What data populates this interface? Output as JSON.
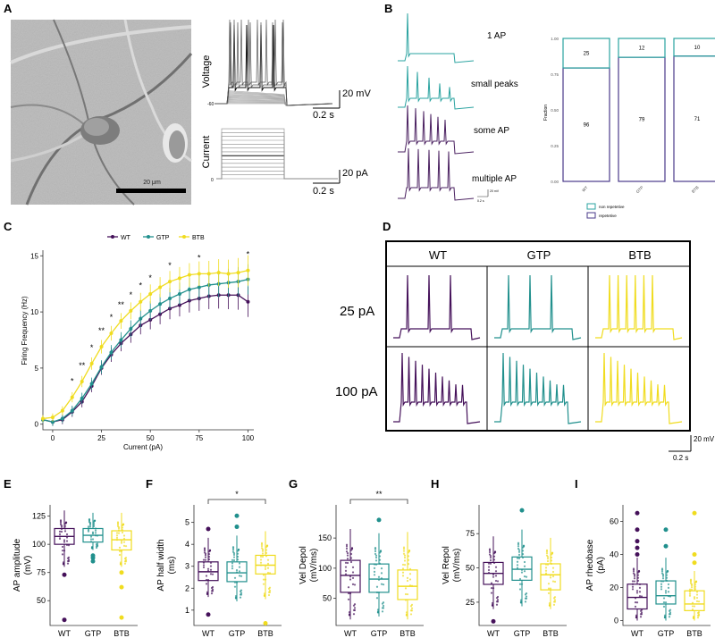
{
  "panel_letters": [
    "A",
    "B",
    "C",
    "D",
    "E",
    "F",
    "G",
    "H",
    "I"
  ],
  "colors": {
    "WT": "#45115a",
    "GTP": "#21908d",
    "BTB": "#f0dc1f",
    "bar_nonrep": "#2aa3a0",
    "bar_rep": "#4a3a8a"
  },
  "panelA": {
    "scale_text": "20 μm",
    "voltage_label": "Voltage",
    "current_label": "Current",
    "volt_scale_v": "20 mV",
    "volt_scale_t": "0.2 s",
    "curr_scale_v": "20 pA",
    "curr_scale_t": "0.2 s",
    "volt_baseline": "-60",
    "curr_baseline": "0"
  },
  "panelB": {
    "trace_labels": [
      "1 AP",
      "small peaks",
      "some AP",
      "multiple AP"
    ],
    "mini_scale_v": "20 mV",
    "mini_scale_t": "0.2 s",
    "bar_chart": {
      "type": "bar",
      "ylabel": "Fraction",
      "yticks": [
        "0.00",
        "0.25",
        "0.50",
        "0.75",
        "1.00"
      ],
      "categories": [
        "WT",
        "GTP",
        "BTB"
      ],
      "series": [
        {
          "name": "repetitive",
          "values": [
            96,
            79,
            71
          ]
        },
        {
          "name": "non repetetive",
          "values": [
            25,
            12,
            10
          ]
        }
      ],
      "legend": [
        "non repetetive",
        "repetetive"
      ]
    }
  },
  "chart_data": [
    {
      "type": "line",
      "title": "",
      "xlabel": "Current (pA)",
      "ylabel": "Firing Frequency (Hz)",
      "xlim": [
        -5,
        103
      ],
      "ylim": [
        -0.5,
        15.5
      ],
      "xticks": [
        "0",
        "25",
        "50",
        "75",
        "100"
      ],
      "yticks": [
        "0",
        "5",
        "10",
        "15"
      ],
      "x": [
        -5,
        0,
        5,
        10,
        15,
        20,
        25,
        30,
        35,
        40,
        45,
        50,
        55,
        60,
        65,
        70,
        75,
        80,
        85,
        90,
        95,
        100
      ],
      "series": [
        {
          "name": "WT",
          "values": [
            0.4,
            0.2,
            0.4,
            1.1,
            2.0,
            3.4,
            5.0,
            6.2,
            7.2,
            8.0,
            8.8,
            9.3,
            9.8,
            10.3,
            10.6,
            11.0,
            11.2,
            11.4,
            11.5,
            11.5,
            11.5,
            10.9
          ]
        },
        {
          "name": "GTP",
          "values": [
            0.4,
            0.2,
            0.5,
            1.2,
            2.3,
            3.6,
            5.1,
            6.4,
            7.5,
            8.5,
            9.4,
            10.1,
            10.7,
            11.2,
            11.6,
            12.0,
            12.2,
            12.4,
            12.5,
            12.6,
            12.7,
            12.9
          ]
        },
        {
          "name": "BTB",
          "values": [
            0.5,
            0.6,
            1.2,
            2.4,
            3.8,
            5.4,
            6.9,
            8.1,
            9.2,
            10.1,
            10.9,
            11.6,
            12.2,
            12.7,
            13.0,
            13.3,
            13.4,
            13.4,
            13.5,
            13.4,
            13.5,
            13.7
          ]
        }
      ],
      "sig_marks": [
        {
          "x": 10,
          "label": "*"
        },
        {
          "x": 15,
          "label": "**"
        },
        {
          "x": 20,
          "label": "*"
        },
        {
          "x": 25,
          "label": "**"
        },
        {
          "x": 30,
          "label": "*"
        },
        {
          "x": 35,
          "label": "**"
        },
        {
          "x": 40,
          "label": "*"
        },
        {
          "x": 45,
          "label": "*"
        },
        {
          "x": 50,
          "label": "*"
        },
        {
          "x": 60,
          "label": "*"
        },
        {
          "x": 75,
          "label": "*"
        },
        {
          "x": 100,
          "label": "*"
        }
      ],
      "legend": [
        "WT",
        "GTP",
        "BTB"
      ]
    },
    {
      "type": "box",
      "panel": "E",
      "ylabel": "AP amplitude\n(mV)",
      "ylim": [
        28,
        135
      ],
      "yticks": [
        50,
        75,
        100,
        125
      ],
      "categories": [
        "WT",
        "GTP",
        "BTB"
      ],
      "boxes": [
        {
          "min": 80,
          "q1": 100,
          "median": 107,
          "q3": 114,
          "max": 130,
          "outliers": [
            73,
            33
          ]
        },
        {
          "min": 95,
          "q1": 102,
          "median": 108,
          "q3": 114,
          "max": 128,
          "outliers": [
            88,
            85,
            90
          ]
        },
        {
          "min": 80,
          "q1": 95,
          "median": 104,
          "q3": 112,
          "max": 128,
          "outliers": [
            75,
            62,
            35
          ]
        }
      ],
      "sig": null
    },
    {
      "type": "box",
      "panel": "F",
      "ylabel": "AP half width\n(ms)",
      "ylim": [
        0.3,
        5.8
      ],
      "yticks": [
        1,
        2,
        3,
        4,
        5
      ],
      "categories": [
        "WT",
        "GTP",
        "BTB"
      ],
      "boxes": [
        {
          "min": 1.6,
          "q1": 2.35,
          "median": 2.75,
          "q3": 3.2,
          "max": 4.3,
          "outliers": [
            0.8,
            4.7
          ]
        },
        {
          "min": 1.4,
          "q1": 2.3,
          "median": 2.7,
          "q3": 3.2,
          "max": 4.4,
          "outliers": [
            5.3,
            4.8
          ]
        },
        {
          "min": 1.5,
          "q1": 2.65,
          "median": 3.05,
          "q3": 3.5,
          "max": 4.6,
          "outliers": [
            0.4
          ]
        }
      ],
      "sig": {
        "from": 0,
        "to": 2,
        "label": "*"
      }
    },
    {
      "type": "box",
      "panel": "G",
      "ylabel": "Vel Depol\n(mV/ms)",
      "ylim": [
        5,
        205
      ],
      "yticks": [
        50,
        100,
        150
      ],
      "categories": [
        "WT",
        "GTP",
        "BTB"
      ],
      "boxes": [
        {
          "min": 15,
          "q1": 60,
          "median": 88,
          "q3": 113,
          "max": 165,
          "outliers": []
        },
        {
          "min": 20,
          "q1": 60,
          "median": 82,
          "q3": 107,
          "max": 158,
          "outliers": [
            180
          ]
        },
        {
          "min": 15,
          "q1": 48,
          "median": 70,
          "q3": 97,
          "max": 160,
          "outliers": []
        }
      ],
      "sig": {
        "from": 0,
        "to": 2,
        "label": "**"
      }
    },
    {
      "type": "box",
      "panel": "H",
      "ylabel": "Vel Repol\n(mV/ms)",
      "ylim": [
        8,
        96
      ],
      "yticks": [
        25,
        50,
        75
      ],
      "categories": [
        "WT",
        "GTP",
        "BTB"
      ],
      "boxes": [
        {
          "min": 20,
          "q1": 38,
          "median": 46,
          "q3": 54,
          "max": 73,
          "outliers": [
            11
          ]
        },
        {
          "min": 22,
          "q1": 41,
          "median": 49,
          "q3": 58,
          "max": 78,
          "outliers": [
            92
          ]
        },
        {
          "min": 20,
          "q1": 34,
          "median": 45,
          "q3": 53,
          "max": 72,
          "outliers": []
        }
      ],
      "sig": null
    },
    {
      "type": "box",
      "panel": "I",
      "ylabel": "AP rheobase\n(pA)",
      "ylim": [
        -3,
        70
      ],
      "yticks": [
        0,
        20,
        40,
        60
      ],
      "categories": [
        "WT",
        "GTP",
        "BTB"
      ],
      "boxes": [
        {
          "min": 0,
          "q1": 7,
          "median": 14,
          "q3": 22,
          "max": 38,
          "outliers": [
            40,
            44,
            48,
            55,
            65
          ]
        },
        {
          "min": 0,
          "q1": 10,
          "median": 15,
          "q3": 24,
          "max": 38,
          "outliers": [
            45,
            55
          ]
        },
        {
          "min": 0,
          "q1": 6,
          "median": 10,
          "q3": 18,
          "max": 30,
          "outliers": [
            35,
            40,
            65
          ]
        }
      ],
      "sig": null
    }
  ],
  "panelD": {
    "columns": [
      "WT",
      "GTP",
      "BTB"
    ],
    "rows": [
      "25 pA",
      "100 pA"
    ],
    "scale_v": "20 mV",
    "scale_t": "0.2 s"
  }
}
